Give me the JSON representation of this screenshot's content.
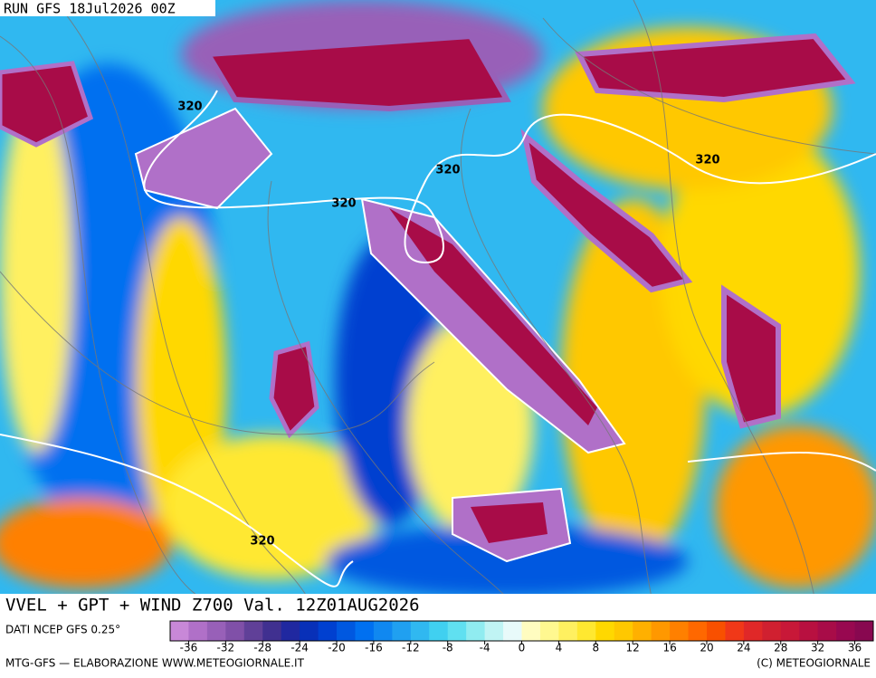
{
  "header": {
    "run": "RUN GFS 18Jul2026 00Z"
  },
  "map": {
    "contour_labels": [
      "320",
      "320",
      "320",
      "320",
      "320"
    ],
    "product": "VVEL + GPT + WIND Z700 Val. 12Z01AUG2026",
    "source": "DATI NCEP GFS 0.25°"
  },
  "colorbar": {
    "lim": [
      -38,
      38
    ],
    "ticks": [
      -36,
      -32,
      -28,
      -24,
      -20,
      -16,
      -12,
      -8,
      -4,
      0,
      4,
      8,
      12,
      16,
      20,
      24,
      28,
      32,
      36
    ],
    "colors": [
      "#c888d8",
      "#b070c8",
      "#9860b8",
      "#8050a8",
      "#604098",
      "#403090",
      "#2028a0",
      "#0830b8",
      "#0040d0",
      "#0058e0",
      "#0070f0",
      "#1088f0",
      "#20a0f0",
      "#30b8f0",
      "#40d0f0",
      "#60e0f0",
      "#90ecf0",
      "#c0f4f4",
      "#e8fafa",
      "#fffcc0",
      "#fff890",
      "#fff060",
      "#ffe830",
      "#ffd800",
      "#ffc800",
      "#ffb000",
      "#ff9800",
      "#ff8000",
      "#ff6800",
      "#f85000",
      "#f03818",
      "#e02828",
      "#d02030",
      "#c81838",
      "#b81040",
      "#a80c48",
      "#980850",
      "#880850"
    ]
  },
  "footer": {
    "left": "MTG-GFS — ELABORAZIONE WWW.METEOGIORNALE.IT",
    "right": "(C) METEOGIORNALE"
  }
}
